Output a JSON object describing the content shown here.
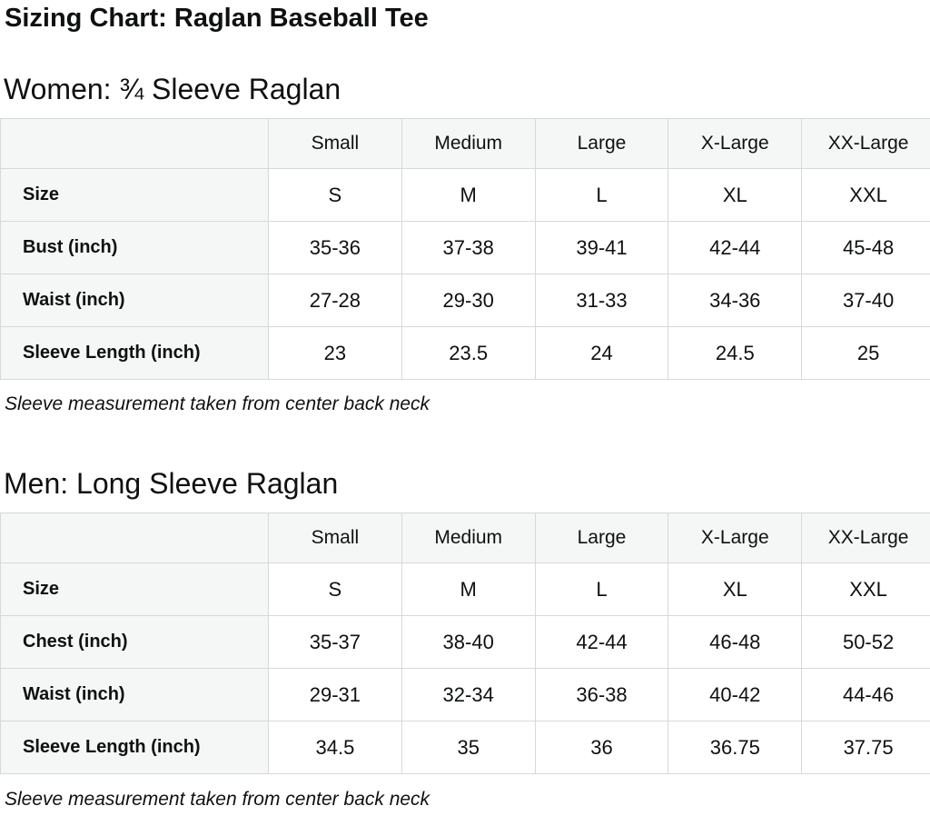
{
  "page": {
    "title": "Sizing Chart: Raglan Baseball Tee"
  },
  "colors": {
    "text": "#0f1111",
    "header_cell_bg": "#f5f6f6",
    "border": "#d5d9d9"
  },
  "women": {
    "heading": "Women: ¾ Sleeve Raglan",
    "footnote": "Sleeve measurement taken from center back neck",
    "table": {
      "column_headers": [
        "",
        "Small",
        "Medium",
        "Large",
        "X-Large",
        "XX-Large"
      ],
      "rows": [
        {
          "label": "Size",
          "values": [
            "S",
            "M",
            "L",
            "XL",
            "XXL"
          ]
        },
        {
          "label": "Bust (inch)",
          "values": [
            "35-36",
            "37-38",
            "39-41",
            "42-44",
            "45-48"
          ]
        },
        {
          "label": "Waist (inch)",
          "values": [
            "27-28",
            "29-30",
            "31-33",
            "34-36",
            "37-40"
          ]
        },
        {
          "label": "Sleeve Length (inch)",
          "values": [
            "23",
            "23.5",
            "24",
            "24.5",
            "25"
          ]
        }
      ]
    }
  },
  "men": {
    "heading": "Men: Long Sleeve Raglan",
    "footnote": "Sleeve measurement taken from center back neck",
    "table": {
      "column_headers": [
        "",
        "Small",
        "Medium",
        "Large",
        "X-Large",
        "XX-Large"
      ],
      "rows": [
        {
          "label": "Size",
          "values": [
            "S",
            "M",
            "L",
            "XL",
            "XXL"
          ]
        },
        {
          "label": "Chest (inch)",
          "values": [
            "35-37",
            "38-40",
            "42-44",
            "46-48",
            "50-52"
          ]
        },
        {
          "label": "Waist (inch)",
          "values": [
            "29-31",
            "32-34",
            "36-38",
            "40-42",
            "44-46"
          ]
        },
        {
          "label": "Sleeve Length (inch)",
          "values": [
            "34.5",
            "35",
            "36",
            "36.75",
            "37.75"
          ]
        }
      ]
    }
  }
}
